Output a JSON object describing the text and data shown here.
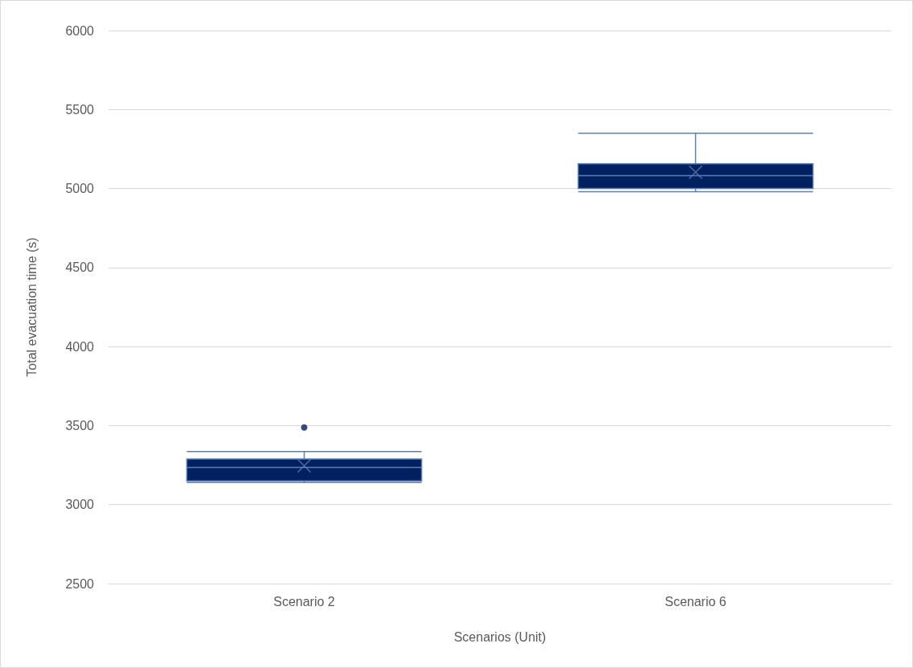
{
  "chart_data": {
    "type": "box",
    "xlabel": "Scenarios (Unit)",
    "ylabel": "Total evacuation time (s)",
    "categories": [
      "Scenario 2",
      "Scenario 6"
    ],
    "series": [
      {
        "color": "#002060",
        "boxes": [
          {
            "low": 3140,
            "q1": 3150,
            "median": 3235,
            "q3": 3288,
            "high": 3336,
            "mean": 3245,
            "outliers": [
              3488
            ]
          },
          {
            "low": 4980,
            "q1": 5000,
            "median": 5082,
            "q3": 5157,
            "high": 5350,
            "mean": 5103
          }
        ]
      }
    ],
    "ylim": [
      2500,
      6000
    ],
    "yticks": [
      2500,
      3000,
      3500,
      4000,
      4500,
      5000,
      5500,
      6000
    ],
    "grid": "y"
  }
}
